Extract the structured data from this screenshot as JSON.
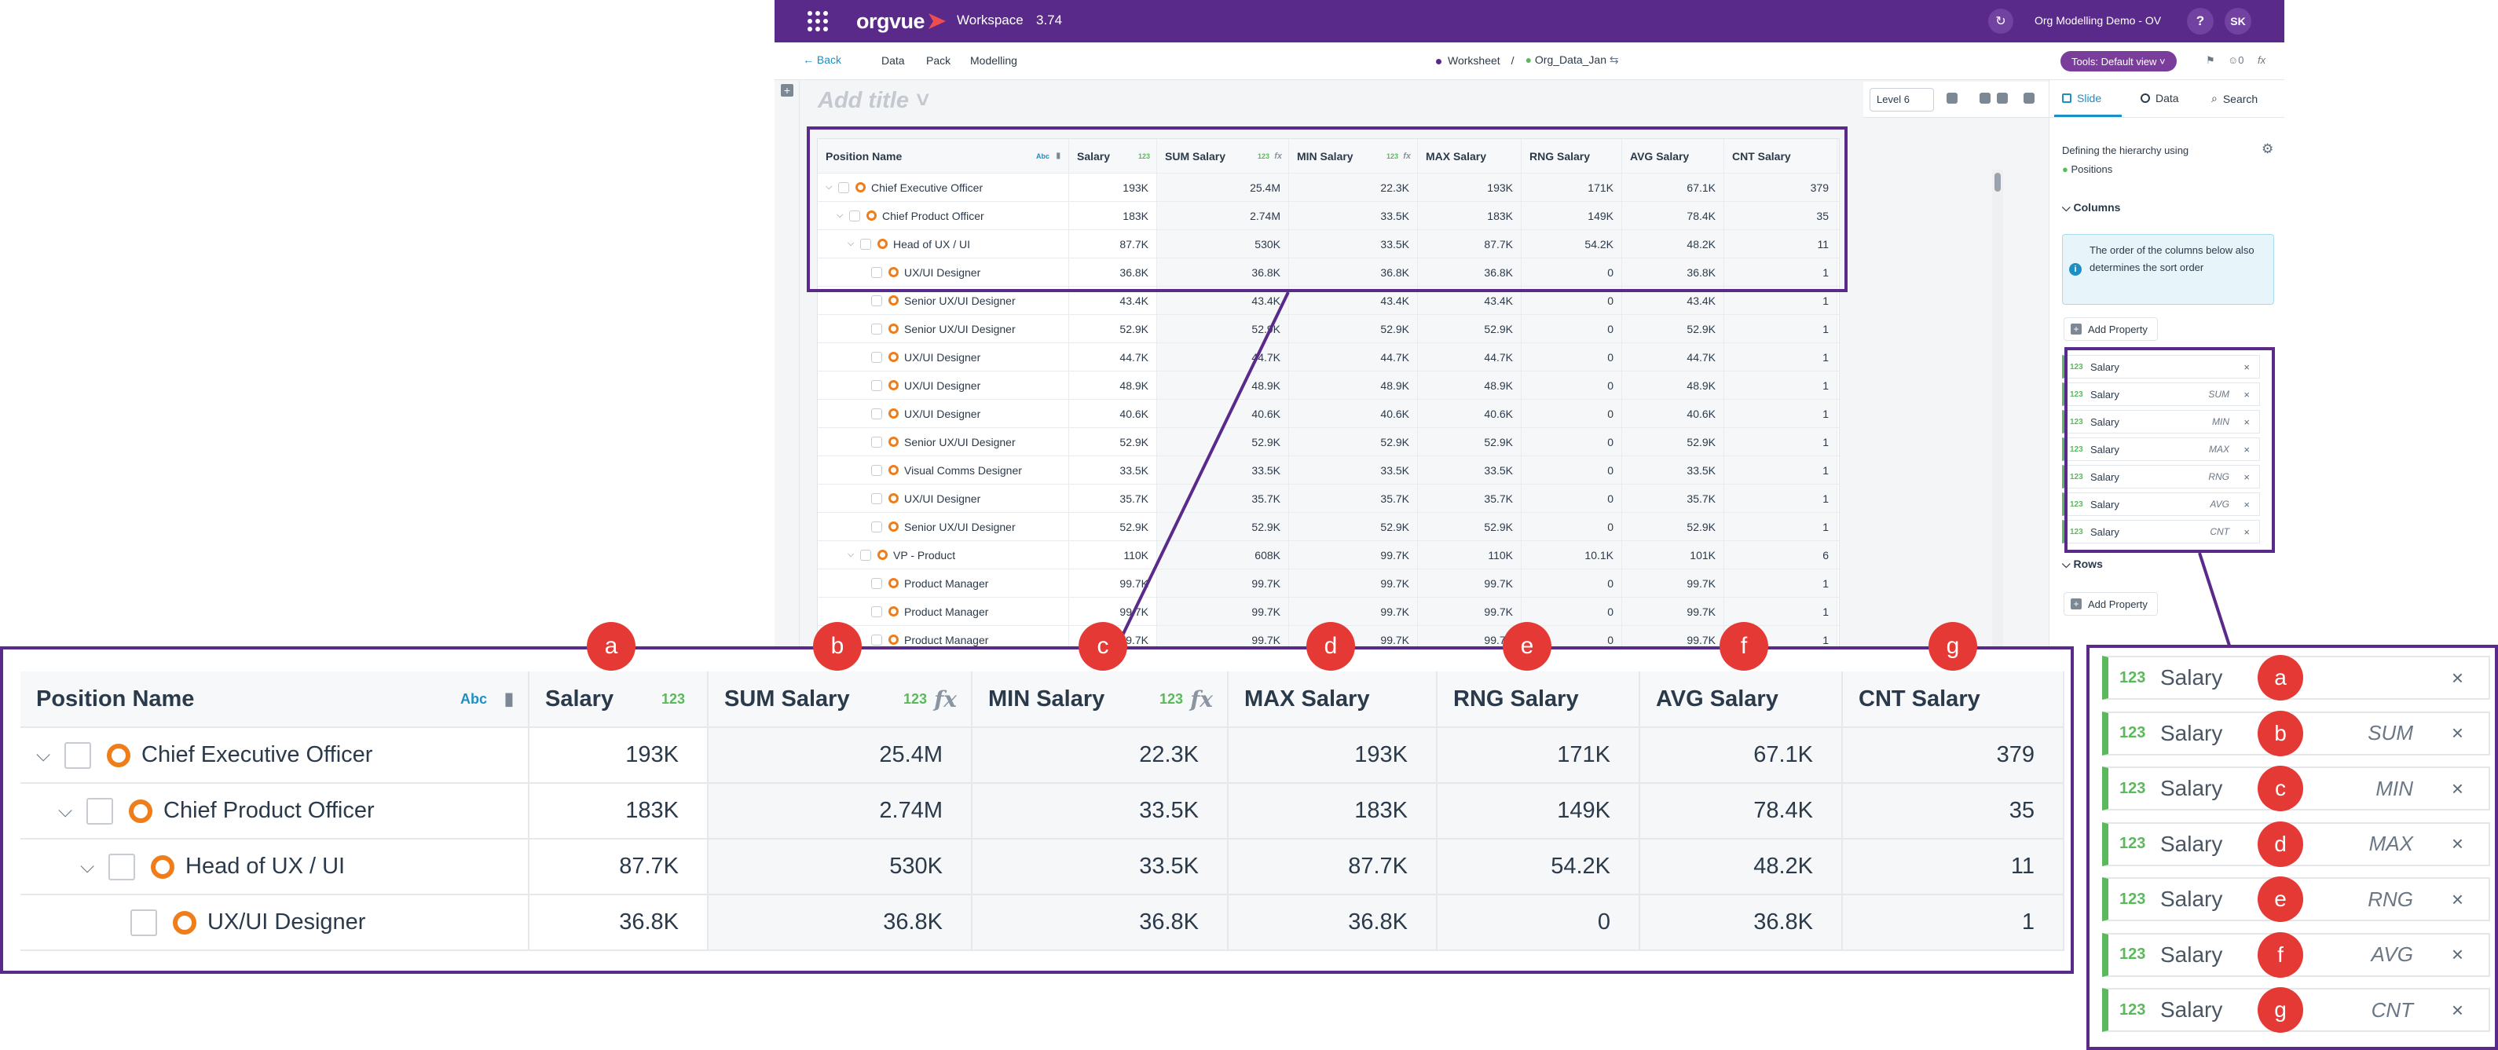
{
  "app": {
    "logo": "orgvue",
    "workspace_label": "Workspace",
    "version": "3.74",
    "demo_name": "Org Modelling Demo - OV",
    "help": "?",
    "avatar": "SK"
  },
  "menu": {
    "back": "← Back",
    "data": "Data",
    "pack": "Pack",
    "modelling": "Modelling",
    "breadcrumb_worksheet": "Worksheet",
    "breadcrumb_sep": "/",
    "breadcrumb_dataset": "Org_Data_Jan",
    "tools": "Tools: Default view ˅",
    "user_count": "0",
    "fx": "fx"
  },
  "worksheet": {
    "title_placeholder": "Add title ˅",
    "level": "Level 6",
    "columns": [
      "Position Name",
      "Salary",
      "SUM Salary",
      "MIN Salary",
      "MAX Salary",
      "RNG Salary",
      "AVG Salary",
      "CNT Salary"
    ],
    "type_abc": "Abc",
    "type_123": "123",
    "fx": "fx",
    "rows": [
      {
        "name": "Chief Executive Officer",
        "level": 0,
        "expand": true,
        "vals": [
          "193K",
          "25.4M",
          "22.3K",
          "193K",
          "171K",
          "67.1K",
          "379"
        ]
      },
      {
        "name": "Chief Product Officer",
        "level": 1,
        "expand": true,
        "vals": [
          "183K",
          "2.74M",
          "33.5K",
          "183K",
          "149K",
          "78.4K",
          "35"
        ]
      },
      {
        "name": "Head of UX / UI",
        "level": 2,
        "expand": true,
        "vals": [
          "87.7K",
          "530K",
          "33.5K",
          "87.7K",
          "54.2K",
          "48.2K",
          "11"
        ]
      },
      {
        "name": "UX/UI Designer",
        "level": 3,
        "expand": false,
        "vals": [
          "36.8K",
          "36.8K",
          "36.8K",
          "36.8K",
          "0",
          "36.8K",
          "1"
        ]
      },
      {
        "name": "Senior UX/UI Designer",
        "level": 3,
        "expand": false,
        "vals": [
          "43.4K",
          "43.4K",
          "43.4K",
          "43.4K",
          "0",
          "43.4K",
          "1"
        ]
      },
      {
        "name": "Senior UX/UI Designer",
        "level": 3,
        "expand": false,
        "vals": [
          "52.9K",
          "52.9K",
          "52.9K",
          "52.9K",
          "0",
          "52.9K",
          "1"
        ]
      },
      {
        "name": "UX/UI Designer",
        "level": 3,
        "expand": false,
        "vals": [
          "44.7K",
          "44.7K",
          "44.7K",
          "44.7K",
          "0",
          "44.7K",
          "1"
        ]
      },
      {
        "name": "UX/UI Designer",
        "level": 3,
        "expand": false,
        "vals": [
          "48.9K",
          "48.9K",
          "48.9K",
          "48.9K",
          "0",
          "48.9K",
          "1"
        ]
      },
      {
        "name": "UX/UI Designer",
        "level": 3,
        "expand": false,
        "vals": [
          "40.6K",
          "40.6K",
          "40.6K",
          "40.6K",
          "0",
          "40.6K",
          "1"
        ]
      },
      {
        "name": "Senior UX/UI Designer",
        "level": 3,
        "expand": false,
        "vals": [
          "52.9K",
          "52.9K",
          "52.9K",
          "52.9K",
          "0",
          "52.9K",
          "1"
        ]
      },
      {
        "name": "Visual Comms Designer",
        "level": 3,
        "expand": false,
        "vals": [
          "33.5K",
          "33.5K",
          "33.5K",
          "33.5K",
          "0",
          "33.5K",
          "1"
        ]
      },
      {
        "name": "UX/UI Designer",
        "level": 3,
        "expand": false,
        "vals": [
          "35.7K",
          "35.7K",
          "35.7K",
          "35.7K",
          "0",
          "35.7K",
          "1"
        ]
      },
      {
        "name": "Senior UX/UI Designer",
        "level": 3,
        "expand": false,
        "vals": [
          "52.9K",
          "52.9K",
          "52.9K",
          "52.9K",
          "0",
          "52.9K",
          "1"
        ]
      },
      {
        "name": "VP - Product",
        "level": 2,
        "expand": true,
        "vals": [
          "110K",
          "608K",
          "99.7K",
          "110K",
          "10.1K",
          "101K",
          "6"
        ]
      },
      {
        "name": "Product Manager",
        "level": 3,
        "expand": false,
        "vals": [
          "99.7K",
          "99.7K",
          "99.7K",
          "99.7K",
          "0",
          "99.7K",
          "1"
        ]
      },
      {
        "name": "Product Manager",
        "level": 3,
        "expand": false,
        "vals": [
          "99.7K",
          "99.7K",
          "99.7K",
          "99.7K",
          "0",
          "99.7K",
          "1"
        ]
      },
      {
        "name": "Product Manager",
        "level": 3,
        "expand": false,
        "vals": [
          "99.7K",
          "99.7K",
          "99.7K",
          "99.7K",
          "0",
          "99.7K",
          "1"
        ]
      }
    ]
  },
  "panel": {
    "tabs": [
      "Slide",
      "Data",
      "Search"
    ],
    "defining": "Defining the hierarchy using",
    "positions": "Positions",
    "columns_header": "Columns",
    "info": "The order of the columns below also determines the sort order",
    "add_property": "Add Property",
    "rows_header": "Rows",
    "properties": [
      {
        "type": "123",
        "name": "Salary",
        "agg": "",
        "letter": "a"
      },
      {
        "type": "123",
        "name": "Salary",
        "agg": "SUM",
        "letter": "b"
      },
      {
        "type": "123",
        "name": "Salary",
        "agg": "MIN",
        "letter": "c"
      },
      {
        "type": "123",
        "name": "Salary",
        "agg": "MAX",
        "letter": "d"
      },
      {
        "type": "123",
        "name": "Salary",
        "agg": "RNG",
        "letter": "e"
      },
      {
        "type": "123",
        "name": "Salary",
        "agg": "AVG",
        "letter": "f"
      },
      {
        "type": "123",
        "name": "Salary",
        "agg": "CNT",
        "letter": "g"
      }
    ],
    "remove": "×"
  },
  "annotation": {
    "column_letters": [
      "a",
      "b",
      "c",
      "d",
      "e",
      "f",
      "g"
    ],
    "colors": {
      "frame": "#5a2a8a",
      "badge": "#e53935",
      "accent": "#1c8fc4",
      "type": "#5cb85c",
      "node": "#ef7d1a"
    }
  }
}
